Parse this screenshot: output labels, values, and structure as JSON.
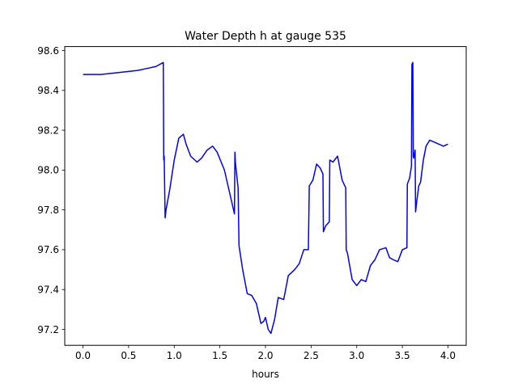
{
  "chart_data": {
    "type": "line",
    "title": "Water Depth h at gauge 535",
    "xlabel": "hours",
    "ylabel": "",
    "xlim": [
      -0.2,
      4.2
    ],
    "ylim": [
      97.12,
      98.62
    ],
    "xticks": [
      0.0,
      0.5,
      1.0,
      1.5,
      2.0,
      2.5,
      3.0,
      3.5,
      4.0
    ],
    "xtick_labels": [
      "0.0",
      "0.5",
      "1.0",
      "1.5",
      "2.0",
      "2.5",
      "3.0",
      "3.5",
      "4.0"
    ],
    "yticks": [
      97.2,
      97.4,
      97.6,
      97.8,
      98.0,
      98.2,
      98.4,
      98.6
    ],
    "ytick_labels": [
      "97.2",
      "97.4",
      "97.6",
      "97.8",
      "98.0",
      "98.2",
      "98.4",
      "98.6"
    ],
    "grid": false,
    "legend": "none",
    "series": [
      {
        "color": "#0000ff",
        "x": [
          0.0,
          0.2,
          0.4,
          0.6,
          0.7,
          0.8,
          0.88,
          0.885,
          0.89,
          0.9,
          0.91,
          0.95,
          1.0,
          1.05,
          1.1,
          1.13,
          1.18,
          1.25,
          1.3,
          1.36,
          1.42,
          1.47,
          1.55,
          1.6,
          1.66,
          1.665,
          1.67,
          1.7,
          1.71,
          1.75,
          1.8,
          1.85,
          1.9,
          1.95,
          1.98,
          2.0,
          2.03,
          2.06,
          2.1,
          2.14,
          2.2,
          2.25,
          2.32,
          2.37,
          2.42,
          2.47,
          2.48,
          2.52,
          2.56,
          2.6,
          2.63,
          2.635,
          2.66,
          2.7,
          2.705,
          2.74,
          2.79,
          2.84,
          2.88,
          2.885,
          2.9,
          2.95,
          3.0,
          3.05,
          3.1,
          3.15,
          3.2,
          3.25,
          3.32,
          3.36,
          3.4,
          3.45,
          3.5,
          3.55,
          3.555,
          3.58,
          3.6,
          3.605,
          3.615,
          3.62,
          3.625,
          3.64,
          3.645,
          3.66,
          3.68,
          3.7,
          3.73,
          3.76,
          3.8,
          3.85,
          3.9,
          3.95,
          4.0
        ],
        "values": [
          98.48,
          98.48,
          98.49,
          98.5,
          98.51,
          98.52,
          98.54,
          98.05,
          98.07,
          97.76,
          97.8,
          97.9,
          98.05,
          98.16,
          98.18,
          98.13,
          98.07,
          98.04,
          98.06,
          98.1,
          98.12,
          98.09,
          98.0,
          97.9,
          97.78,
          98.09,
          98.04,
          97.91,
          97.62,
          97.5,
          97.38,
          97.37,
          97.33,
          97.23,
          97.24,
          97.26,
          97.2,
          97.18,
          97.25,
          97.36,
          97.35,
          97.47,
          97.5,
          97.53,
          97.6,
          97.6,
          97.92,
          97.95,
          98.03,
          98.01,
          97.98,
          97.69,
          97.72,
          97.74,
          98.05,
          98.04,
          98.07,
          97.95,
          97.91,
          97.6,
          97.58,
          97.45,
          97.42,
          97.45,
          97.44,
          97.52,
          97.55,
          97.6,
          97.61,
          97.56,
          97.55,
          97.54,
          97.6,
          97.61,
          97.93,
          97.96,
          98.02,
          98.53,
          98.54,
          98.07,
          98.06,
          98.1,
          97.79,
          97.85,
          97.92,
          97.94,
          98.05,
          98.12,
          98.15,
          98.14,
          98.13,
          98.12,
          98.13
        ]
      }
    ]
  }
}
